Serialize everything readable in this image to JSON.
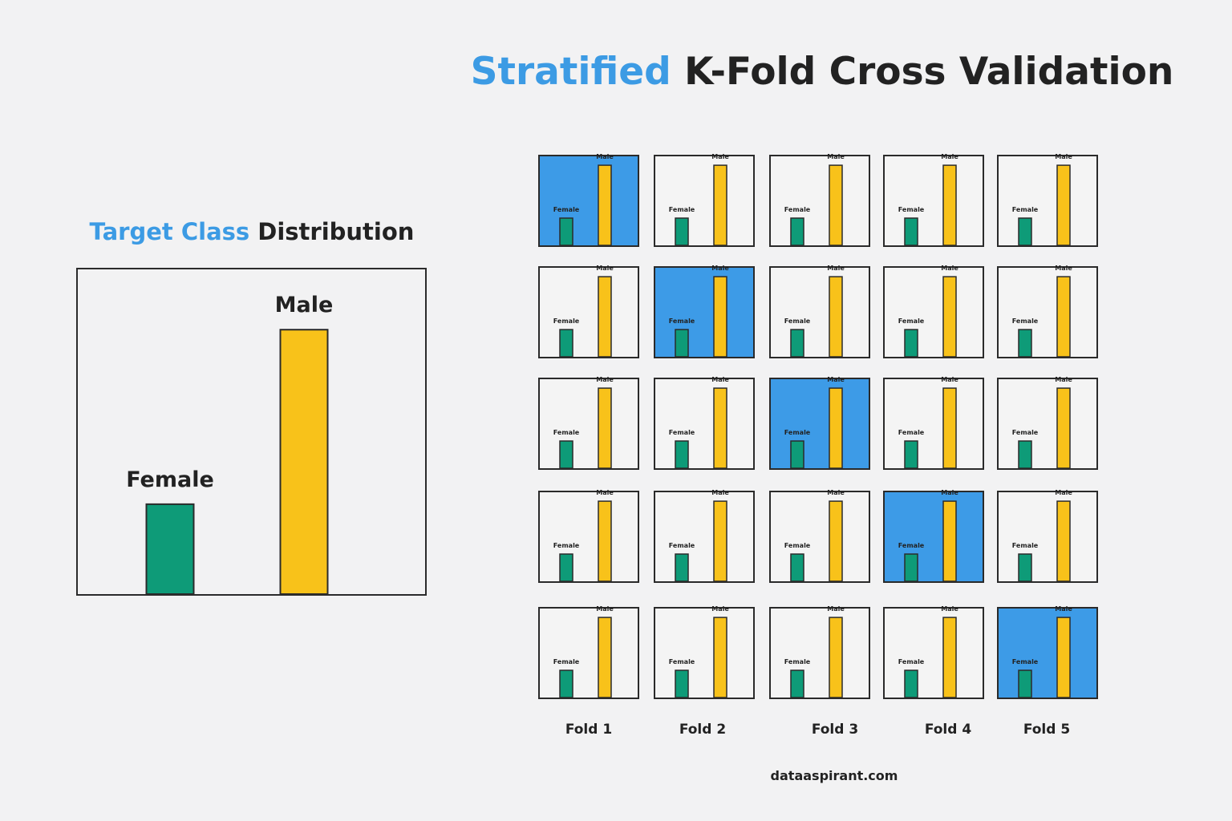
{
  "title": {
    "highlight": "Stratified",
    "rest": " K-Fold Cross Validation"
  },
  "distribution_title": {
    "highlight": "Target Class",
    "rest": " Distribution"
  },
  "colors": {
    "accent": "#3c9be4",
    "female": "#0e9b78",
    "male": "#f8c21a",
    "test_fold": "#3d9be7",
    "train_fold": "#f4f4f4"
  },
  "chart_data": {
    "type": "bar",
    "title": "Target Class Distribution",
    "categories": [
      "Female",
      "Male"
    ],
    "values": [
      34,
      100
    ],
    "ylim": [
      0,
      120
    ],
    "xlabel": "",
    "ylabel": ""
  },
  "folds": {
    "count": 5,
    "labels": [
      "Fold 1",
      "Fold 2",
      "Fold 3",
      "Fold 4",
      "Fold 5"
    ],
    "mini_chart": {
      "categories": [
        "Female",
        "Male"
      ],
      "values": [
        34,
        100
      ],
      "ylim": [
        0,
        110
      ]
    },
    "test_fold_by_row": [
      1,
      2,
      3,
      4,
      5
    ]
  },
  "footer": {
    "source": "dataaspirant.com"
  }
}
